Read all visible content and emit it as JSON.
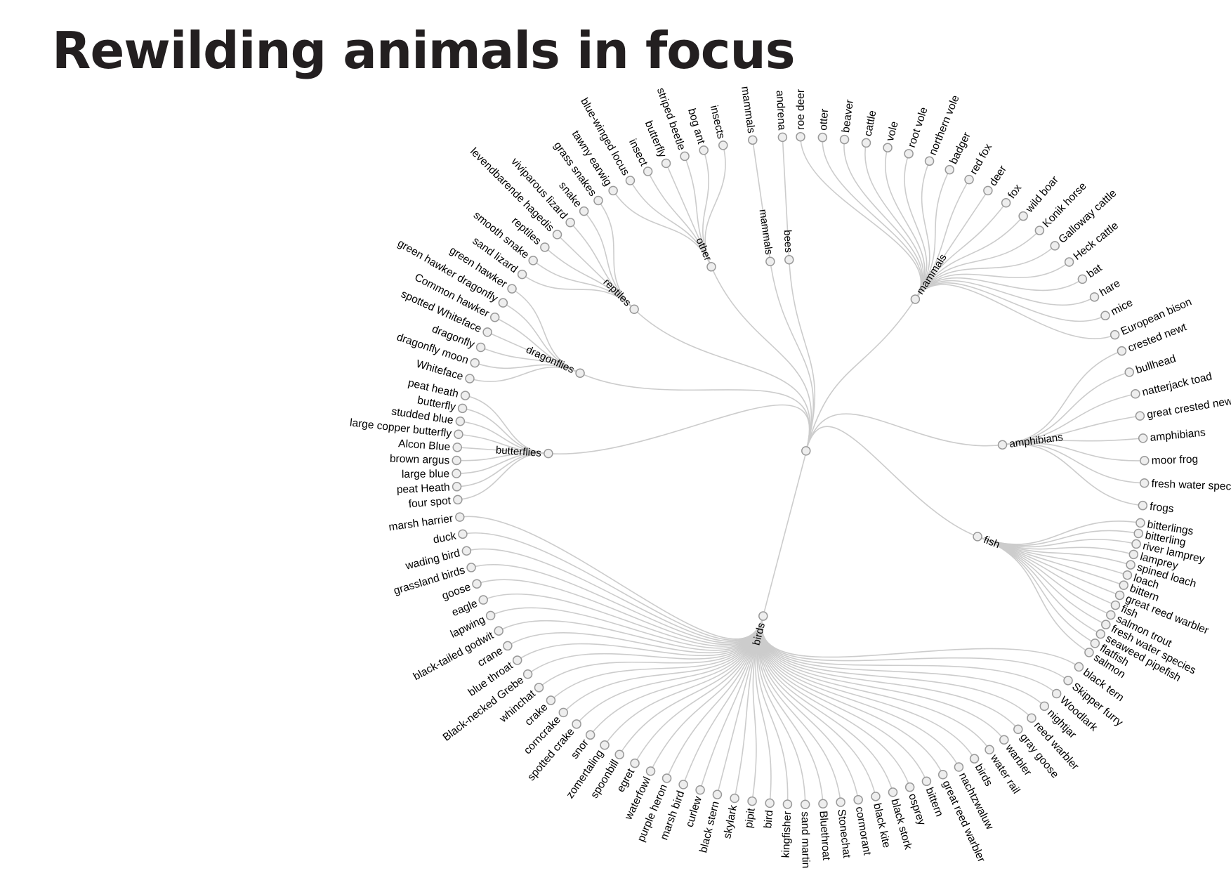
{
  "title": "Rewilding animals in focus",
  "tree": {
    "name": "",
    "children": [
      {
        "name": "mammals",
        "children": [
          "roe deer",
          "otter",
          "beaver",
          "cattle",
          "vole",
          "root vole",
          "northern vole",
          "badger",
          "red fox",
          "deer",
          "fox",
          "wild boar",
          "Konik horse",
          "Galloway cattle",
          "Heck cattle",
          "bat",
          "hare",
          "mice",
          "European bison"
        ]
      },
      {
        "name": "amphibians",
        "children": [
          "crested newt",
          "bullhead",
          "natterjack toad",
          "great crested newt",
          "amphibians",
          "moor frog",
          "fresh water species",
          "frogs"
        ]
      },
      {
        "name": "fish",
        "children": [
          "bitterlings",
          "bitterling",
          "river lamprey",
          "lamprey",
          "spined loach",
          "loach",
          "bittern",
          "great reed warbler",
          "fish",
          "salmon trout",
          "fresh water species",
          "seaweed pipefish",
          "flatfish",
          "salmon"
        ]
      },
      {
        "name": "birds",
        "children": [
          "black tern",
          "Skipper furry",
          "Woodlark",
          "nightjar",
          "reed warbler",
          "gray goose",
          "warbler",
          "water rail",
          "birds",
          "nachtzwaluw",
          "great reed warbler",
          "bittern",
          "osprey",
          "black stork",
          "black kite",
          "cormorant",
          "Stonechat",
          "Bluethroat",
          "sand martin",
          "kingfisher",
          "bird",
          "pipit",
          "skylark",
          "black stern",
          "curlew",
          "marsh bird",
          "purple heron",
          "waterfowl",
          "egret",
          "spoonbill",
          "zomertaling",
          "snor",
          "spotted crake",
          "corncrake",
          "crake",
          "whinchat",
          "Black-necked Grebe",
          "blue throat",
          "crane",
          "black-tailed godwit",
          "lapwing",
          "eagle",
          "goose",
          "grassland birds",
          "wading bird",
          "duck",
          "marsh harrier"
        ]
      },
      {
        "name": "butterflies",
        "children": [
          "four spot",
          "peat Heath",
          "large blue",
          "brown argus",
          "Alcon Blue",
          "large copper butterfly",
          "studded blue",
          "butterfly",
          "peat heath"
        ]
      },
      {
        "name": "dragonflies",
        "children": [
          "Whiteface",
          "dragonfly moon",
          "dragonfly",
          "spotted Whiteface",
          "Common hawker",
          "green hawker dragonfly",
          "green hawker"
        ]
      },
      {
        "name": "reptiles",
        "children": [
          "sand lizard",
          "smooth snake",
          "reptiles",
          "levendbarende hagedis",
          "viviparous lizard",
          "snake",
          "grass snakes"
        ]
      },
      {
        "name": "other",
        "children": [
          "tawny earwig",
          "blue-winged locus",
          "insect",
          "butterfly",
          "striped beetle",
          "bog ant",
          "insects"
        ]
      },
      {
        "name": "mammals",
        "children": [
          "mammals"
        ]
      },
      {
        "name": "bees",
        "children": [
          "andrena"
        ]
      }
    ]
  }
}
